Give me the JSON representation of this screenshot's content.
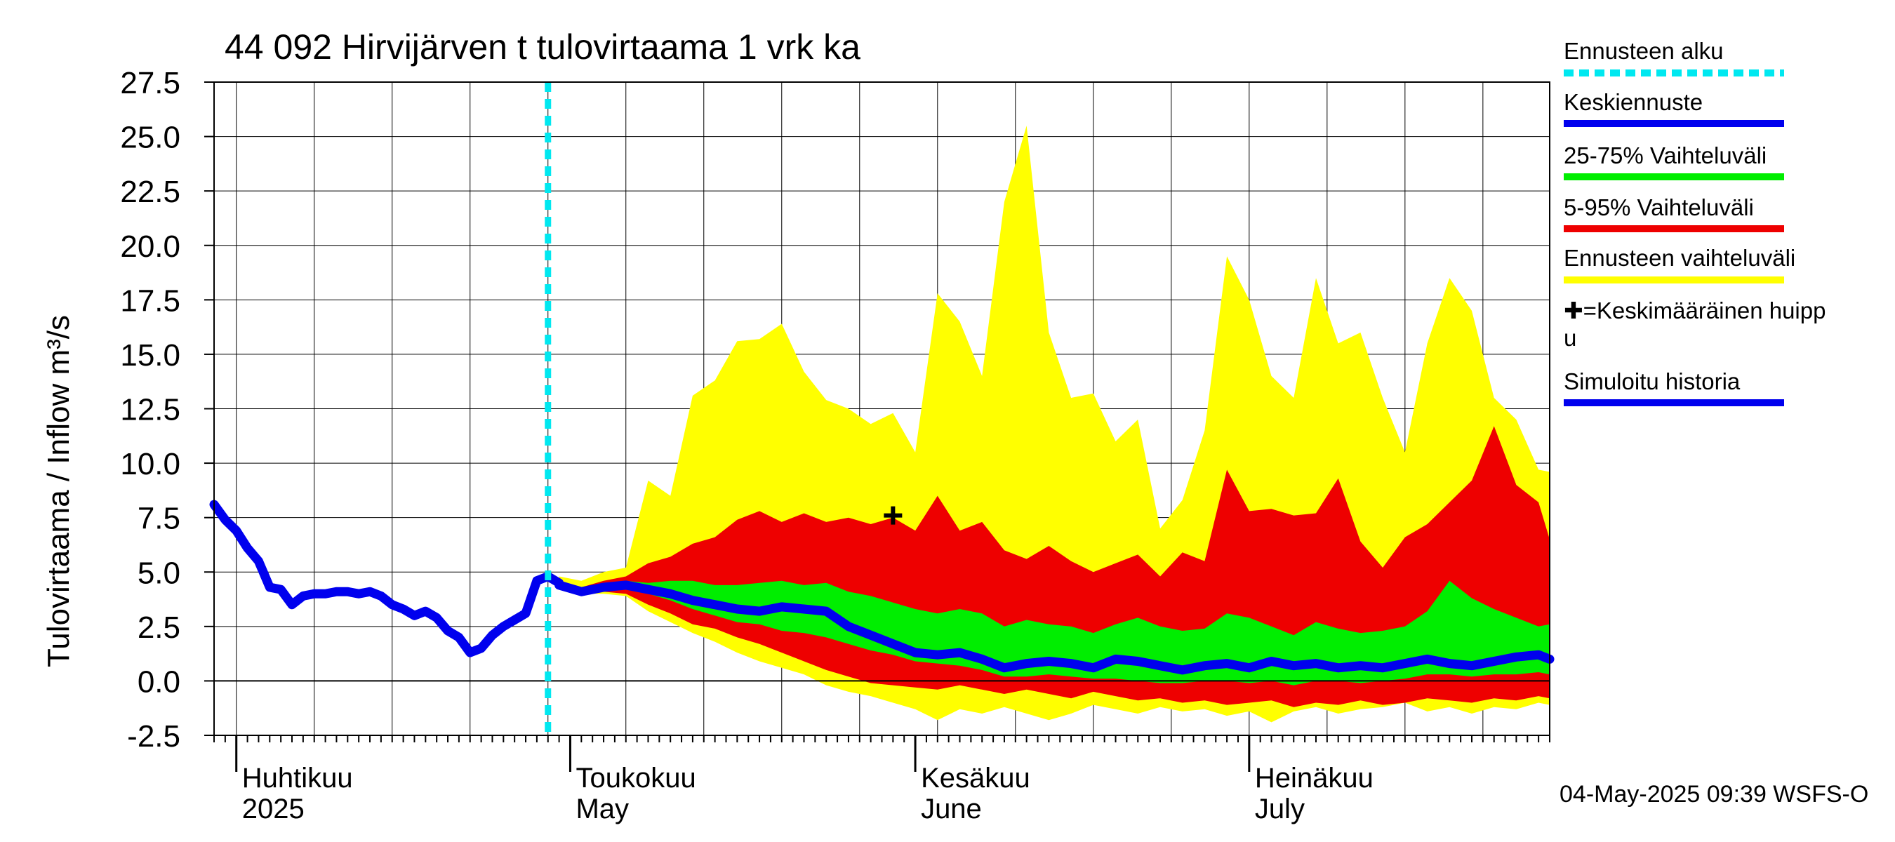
{
  "chart_data": {
    "type": "area",
    "title": "44 092 Hirvijärven t tulovirtaama 1 vrk ka",
    "ylabel": "Tulovirtaama / Inflow    m³/s",
    "ylim": [
      -2.5,
      27.5
    ],
    "yticks": [
      -2.5,
      0.0,
      2.5,
      5.0,
      7.5,
      10.0,
      12.5,
      15.0,
      17.5,
      20.0,
      22.5,
      25.0,
      27.5
    ],
    "ytick_labels": [
      "-2.5",
      "0.0",
      "2.5",
      "5.0",
      "7.5",
      "10.0",
      "12.5",
      "15.0",
      "17.5",
      "20.0",
      "22.5",
      "25.0",
      "27.5"
    ],
    "x_unit": "day of year",
    "xlim": [
      89,
      209
    ],
    "months": [
      {
        "day": 91,
        "fi": "Huhtikuu",
        "en": "2025"
      },
      {
        "day": 121,
        "fi": "Toukokuu",
        "en": "May"
      },
      {
        "day": 152,
        "fi": "Kesäkuu",
        "en": "June"
      },
      {
        "day": 182,
        "fi": "Heinäkuu",
        "en": "July"
      }
    ],
    "forecast_start_day": 119,
    "mean_peak": {
      "day": 150,
      "value": 7.6
    },
    "history": {
      "x": [
        89,
        90,
        91,
        92,
        93,
        94,
        95,
        96,
        97,
        98,
        99,
        100,
        101,
        102,
        103,
        104,
        105,
        106,
        107,
        108,
        109,
        110,
        111,
        112,
        113,
        114,
        115,
        116,
        117,
        118,
        119,
        120
      ],
      "y": [
        8.1,
        7.4,
        6.9,
        6.1,
        5.5,
        4.3,
        4.2,
        3.5,
        3.9,
        4.0,
        4.0,
        4.1,
        4.1,
        4.0,
        4.1,
        3.9,
        3.5,
        3.3,
        3.0,
        3.2,
        2.9,
        2.3,
        2.0,
        1.3,
        1.5,
        2.1,
        2.5,
        2.8,
        3.1,
        4.6,
        4.8,
        4.5
      ]
    },
    "x": [
      120,
      122,
      124,
      126,
      128,
      130,
      132,
      134,
      136,
      138,
      140,
      142,
      144,
      146,
      148,
      150,
      152,
      154,
      156,
      158,
      160,
      162,
      164,
      166,
      168,
      170,
      172,
      174,
      176,
      178,
      180,
      182,
      184,
      186,
      188,
      190,
      192,
      194,
      196,
      198,
      200,
      202,
      204,
      206,
      208,
      209
    ],
    "series": [
      {
        "name": "Keskiennuste",
        "values": [
          4.4,
          4.1,
          4.3,
          4.4,
          4.2,
          4.0,
          3.7,
          3.5,
          3.3,
          3.2,
          3.4,
          3.3,
          3.2,
          2.5,
          2.1,
          1.7,
          1.3,
          1.2,
          1.3,
          1.0,
          0.6,
          0.8,
          0.9,
          0.8,
          0.6,
          1.0,
          0.9,
          0.7,
          0.5,
          0.7,
          0.8,
          0.6,
          0.9,
          0.7,
          0.8,
          0.6,
          0.7,
          0.6,
          0.8,
          1.0,
          0.8,
          0.7,
          0.9,
          1.1,
          1.2,
          1.0
        ]
      },
      {
        "name": "Ennusteen vaihteluväli max",
        "values": [
          4.8,
          4.6,
          5.0,
          5.2,
          9.2,
          8.5,
          13.1,
          13.8,
          15.6,
          15.7,
          16.4,
          14.2,
          12.9,
          12.5,
          11.8,
          12.3,
          10.5,
          17.8,
          16.5,
          14.0,
          22.0,
          25.5,
          16.0,
          13.0,
          13.2,
          11.0,
          12.0,
          7.0,
          8.3,
          11.5,
          19.5,
          17.5,
          14.0,
          13.0,
          18.5,
          15.5,
          16.0,
          13.0,
          10.5,
          15.5,
          18.5,
          17.0,
          13.0,
          12.0,
          9.7,
          9.6
        ]
      },
      {
        "name": "5-95% max",
        "values": [
          4.6,
          4.3,
          4.6,
          4.8,
          5.4,
          5.7,
          6.3,
          6.6,
          7.4,
          7.8,
          7.3,
          7.7,
          7.3,
          7.5,
          7.2,
          7.5,
          6.9,
          8.5,
          6.9,
          7.3,
          6.0,
          5.6,
          6.2,
          5.5,
          5.0,
          5.4,
          5.8,
          4.8,
          5.9,
          5.5,
          9.7,
          7.8,
          7.9,
          7.6,
          7.7,
          9.3,
          6.4,
          5.2,
          6.6,
          7.2,
          8.2,
          9.2,
          11.7,
          9.0,
          8.2,
          6.5
        ]
      },
      {
        "name": "25-75% max",
        "values": [
          4.5,
          4.2,
          4.5,
          4.6,
          4.5,
          4.6,
          4.6,
          4.4,
          4.4,
          4.5,
          4.6,
          4.4,
          4.5,
          4.1,
          3.9,
          3.6,
          3.3,
          3.1,
          3.3,
          3.1,
          2.5,
          2.8,
          2.6,
          2.5,
          2.2,
          2.6,
          2.9,
          2.5,
          2.3,
          2.4,
          3.1,
          2.9,
          2.5,
          2.1,
          2.7,
          2.4,
          2.2,
          2.3,
          2.5,
          3.2,
          4.6,
          3.8,
          3.3,
          2.9,
          2.5,
          2.6
        ]
      },
      {
        "name": "25-75% min",
        "values": [
          4.3,
          4.0,
          4.2,
          4.2,
          4.0,
          3.7,
          3.3,
          3.0,
          2.7,
          2.6,
          2.3,
          2.2,
          2.0,
          1.7,
          1.4,
          1.2,
          0.9,
          0.8,
          0.7,
          0.5,
          0.2,
          0.2,
          0.3,
          0.2,
          0.1,
          0.1,
          0.0,
          -0.1,
          -0.1,
          0.0,
          0.0,
          -0.1,
          0.0,
          -0.2,
          0.0,
          0.0,
          -0.1,
          0.0,
          0.1,
          0.3,
          0.3,
          0.2,
          0.3,
          0.3,
          0.4,
          0.3
        ]
      },
      {
        "name": "5-95% min",
        "values": [
          4.3,
          4.0,
          4.1,
          4.0,
          3.5,
          3.1,
          2.6,
          2.4,
          2.0,
          1.7,
          1.3,
          0.9,
          0.5,
          0.2,
          -0.1,
          -0.2,
          -0.3,
          -0.4,
          -0.2,
          -0.4,
          -0.6,
          -0.4,
          -0.6,
          -0.8,
          -0.5,
          -0.7,
          -0.9,
          -0.8,
          -1.0,
          -0.9,
          -1.1,
          -1.0,
          -0.9,
          -1.2,
          -1.0,
          -1.1,
          -0.9,
          -1.1,
          -1.0,
          -0.8,
          -0.9,
          -1.0,
          -0.8,
          -0.9,
          -0.7,
          -0.8
        ]
      },
      {
        "name": "Ennusteen vaihteluväli min",
        "values": [
          4.3,
          4.0,
          4.0,
          3.9,
          3.2,
          2.7,
          2.2,
          1.8,
          1.3,
          0.9,
          0.6,
          0.3,
          -0.2,
          -0.5,
          -0.7,
          -1.0,
          -1.3,
          -1.8,
          -1.3,
          -1.5,
          -1.2,
          -1.5,
          -1.8,
          -1.5,
          -1.1,
          -1.3,
          -1.5,
          -1.2,
          -1.4,
          -1.3,
          -1.6,
          -1.4,
          -1.9,
          -1.4,
          -1.2,
          -1.5,
          -1.3,
          -1.2,
          -1.0,
          -1.4,
          -1.2,
          -1.5,
          -1.2,
          -1.3,
          -1.0,
          -1.1
        ]
      }
    ],
    "legend": [
      {
        "label": "Ennusteen alku",
        "color": "#00e8f0",
        "style": "dashed"
      },
      {
        "label": "Keskiennuste",
        "color": "#0000ee",
        "style": "solid"
      },
      {
        "label": "25-75% Vaihteluväli",
        "color": "#00ee00",
        "style": "solid"
      },
      {
        "label": "5-95% Vaihteluväli",
        "color": "#ee0000",
        "style": "solid"
      },
      {
        "label": "Ennusteen vaihteluväli",
        "color": "#ffff00",
        "style": "solid"
      },
      {
        "label": "✚=Keskimääräinen huipp",
        "label2": "u",
        "color": null,
        "style": "none"
      },
      {
        "label": "Simuloitu historia",
        "color": "#0000ee",
        "style": "solid"
      }
    ],
    "legend_position": "right",
    "grid": true,
    "timestamp": "04-May-2025 09:39 WSFS-O"
  }
}
